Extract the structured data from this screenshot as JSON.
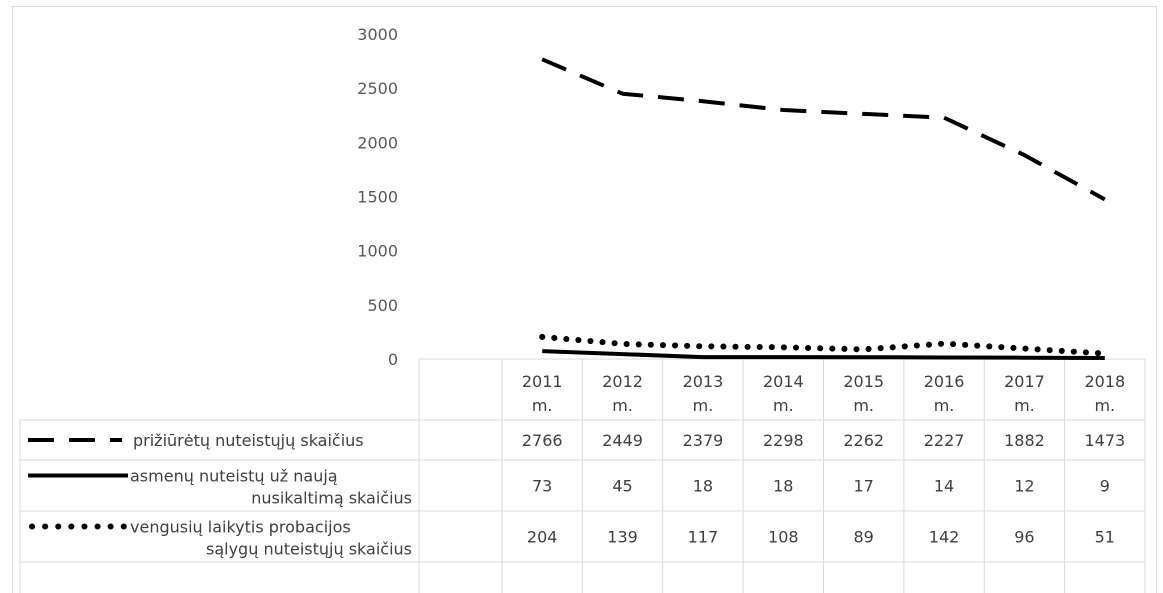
{
  "chart_data": {
    "type": "line",
    "title": "",
    "xlabel": "",
    "ylabel": "",
    "ylim": [
      0,
      3000
    ],
    "yticks": [
      "0",
      "500",
      "1000",
      "1500",
      "2000",
      "2500",
      "3000"
    ],
    "categories": [
      [
        "2011",
        "m."
      ],
      [
        "2012",
        "m."
      ],
      [
        "2013",
        "m."
      ],
      [
        "2014",
        "m."
      ],
      [
        "2015",
        "m."
      ],
      [
        "2016",
        "m."
      ],
      [
        "2017",
        "m."
      ],
      [
        "2018",
        "m."
      ]
    ],
    "series": [
      {
        "name": "prižiūrėtų nuteistųjų skaičius",
        "name_lines": [
          "prižiūrėtų nuteistųjų skaičius"
        ],
        "style": "dashed",
        "color": "#000000",
        "values": [
          2766,
          2449,
          2379,
          2298,
          2262,
          2227,
          1882,
          1473
        ]
      },
      {
        "name": "asmenų nuteistų už naują nusikaltimą skaičius",
        "name_lines": [
          "asmenų nuteistų už naują",
          "nusikaltimą skaičius"
        ],
        "style": "solid",
        "color": "#000000",
        "values": [
          73,
          45,
          18,
          18,
          17,
          14,
          12,
          9
        ]
      },
      {
        "name": "vengusių laikytis probacijos sąlygų nuteistųjų skaičius",
        "name_lines": [
          "vengusių laikytis probacijos",
          "sąlygų nuteistųjų skaičius"
        ],
        "style": "dotted",
        "color": "#000000",
        "values": [
          204,
          139,
          117,
          108,
          89,
          142,
          96,
          51
        ]
      }
    ],
    "grid": false,
    "legend": "data-table"
  }
}
